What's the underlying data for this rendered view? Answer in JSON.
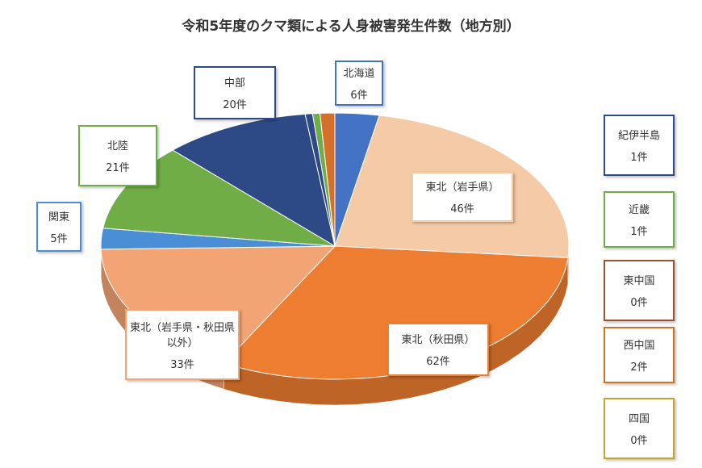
{
  "chart_data": {
    "type": "pie",
    "title": "令和5年度のクマ類による人身被害発生件数（地方別）",
    "categories": [
      "北海道",
      "東北（岩手県）",
      "東北（秋田県）",
      "東北（岩手県・秋田県以外）",
      "関東",
      "北陸",
      "中部",
      "紀伊半島",
      "近畿",
      "東中国",
      "西中国",
      "四国"
    ],
    "values": [
      6,
      46,
      62,
      33,
      5,
      21,
      20,
      1,
      1,
      0,
      2,
      0
    ],
    "value_labels": [
      "6件",
      "46件",
      "62件",
      "33件",
      "5件",
      "21件",
      "20件",
      "1件",
      "1件",
      "0件",
      "2件",
      "0件"
    ],
    "colors": [
      "#4472c4",
      "#f5cba7",
      "#ed7d31",
      "#f2a474",
      "#4a8fd6",
      "#70ad47",
      "#2e4a86",
      "#2e4a86",
      "#70ad47",
      "#a0522d",
      "#d4702a",
      "#c9a227"
    ]
  }
}
